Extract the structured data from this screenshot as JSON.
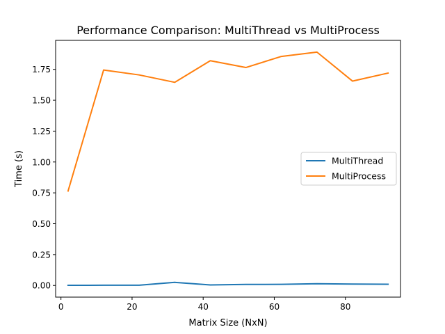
{
  "chart_data": {
    "type": "line",
    "title": "Performance Comparison: MultiThread vs MultiProcess",
    "xlabel": "Matrix Size (NxN)",
    "ylabel": "Time (s)",
    "x": [
      2,
      12,
      22,
      32,
      42,
      52,
      62,
      72,
      82,
      92
    ],
    "xlim": [
      -1.5,
      95.5
    ],
    "ylim": [
      -0.0945,
      1.985
    ],
    "xticks": [
      0,
      20,
      40,
      60,
      80
    ],
    "xtick_labels": [
      "0",
      "20",
      "40",
      "60",
      "80"
    ],
    "yticks": [
      0.0,
      0.25,
      0.5,
      0.75,
      1.0,
      1.25,
      1.5,
      1.75
    ],
    "ytick_labels": [
      "0.00",
      "0.25",
      "0.50",
      "0.75",
      "1.00",
      "1.25",
      "1.50",
      "1.75"
    ],
    "grid": false,
    "legend_position": "center-right",
    "series": [
      {
        "name": "MultiThread",
        "color": "#1f77b4",
        "values": [
          0.001,
          0.002,
          0.002,
          0.025,
          0.004,
          0.008,
          0.009,
          0.014,
          0.011,
          0.01
        ]
      },
      {
        "name": "MultiProcess",
        "color": "#ff7f0e",
        "values": [
          0.765,
          1.745,
          1.705,
          1.645,
          1.82,
          1.765,
          1.855,
          1.89,
          1.655,
          1.72
        ]
      }
    ]
  }
}
